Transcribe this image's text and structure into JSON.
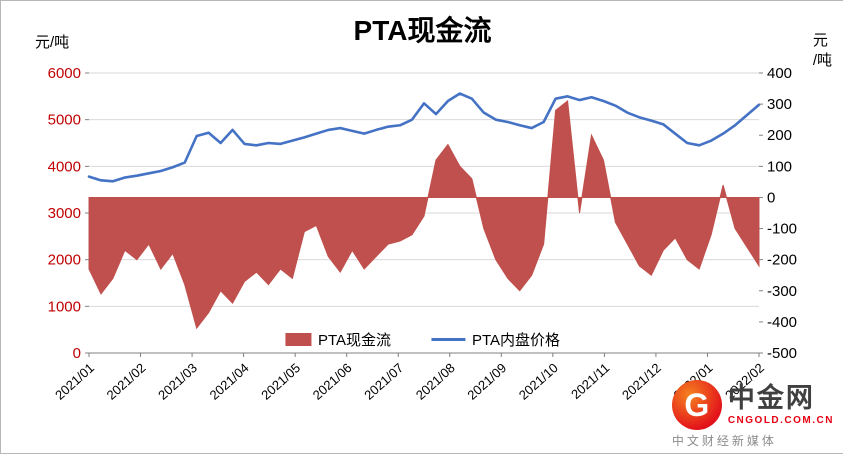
{
  "title": "PTA现金流",
  "left_axis_unit": "元/吨",
  "right_axis_unit": [
    "元",
    "/吨"
  ],
  "logo": {
    "letter": "G",
    "name": "中金网",
    "domain": "CNGOLD.COM.CN",
    "tagline": "中文财经新媒体"
  },
  "chart_data": {
    "type": "combo-area-line-dual-axis",
    "title": "PTA现金流",
    "grid_color": "#D9D9D9",
    "axis_color": "#808080",
    "grid": "horizontal-only",
    "legend_position": "bottom-center-inside",
    "x_tick_labels": [
      "2021/01",
      "2021/02",
      "2021/03",
      "2021/04",
      "2021/05",
      "2021/06",
      "2021/07",
      "2021/08",
      "2021/09",
      "2021/10",
      "2021/11",
      "2021/12",
      "2022/01",
      "2022/02"
    ],
    "left_axis": {
      "unit": "元/吨",
      "min": 0,
      "max": 6000,
      "ticks": [
        6000,
        5000,
        4000,
        3000,
        2000,
        1000,
        0
      ],
      "tick_color": "#C00000"
    },
    "right_axis": {
      "unit": "元/吨",
      "min": -500,
      "max": 400,
      "ticks": [
        400,
        300,
        200,
        100,
        0,
        -100,
        -200,
        -300,
        -400,
        -500
      ],
      "tick_color": "#000000"
    },
    "series": [
      {
        "name": "PTA现金流",
        "type": "area",
        "axis": "right",
        "color": "#C0504D",
        "baseline": 0,
        "values": [
          -230,
          -310,
          -260,
          -170,
          -200,
          -150,
          -230,
          -180,
          -280,
          -420,
          -370,
          -300,
          -340,
          -270,
          -240,
          -280,
          -230,
          -260,
          -110,
          -90,
          -190,
          -240,
          -170,
          -230,
          -190,
          -150,
          -140,
          -120,
          -60,
          120,
          170,
          100,
          60,
          -100,
          -200,
          -260,
          -300,
          -250,
          -150,
          280,
          310,
          -50,
          200,
          120,
          -80,
          -150,
          -220,
          -250,
          -170,
          -130,
          -200,
          -230,
          -120,
          40,
          -100,
          -160,
          -220
        ]
      },
      {
        "name": "PTA内盘价格",
        "type": "line",
        "axis": "left",
        "color": "#4472C4",
        "values": [
          3780,
          3700,
          3680,
          3760,
          3800,
          3850,
          3900,
          3980,
          4080,
          4650,
          4720,
          4500,
          4780,
          4480,
          4450,
          4500,
          4480,
          4550,
          4620,
          4700,
          4780,
          4820,
          4760,
          4700,
          4780,
          4850,
          4880,
          5000,
          5350,
          5120,
          5400,
          5560,
          5450,
          5150,
          5000,
          4950,
          4880,
          4820,
          4950,
          5450,
          5500,
          5420,
          5480,
          5400,
          5300,
          5150,
          5050,
          4980,
          4900,
          4700,
          4500,
          4450,
          4550,
          4700,
          4880,
          5100,
          5320
        ]
      }
    ]
  }
}
